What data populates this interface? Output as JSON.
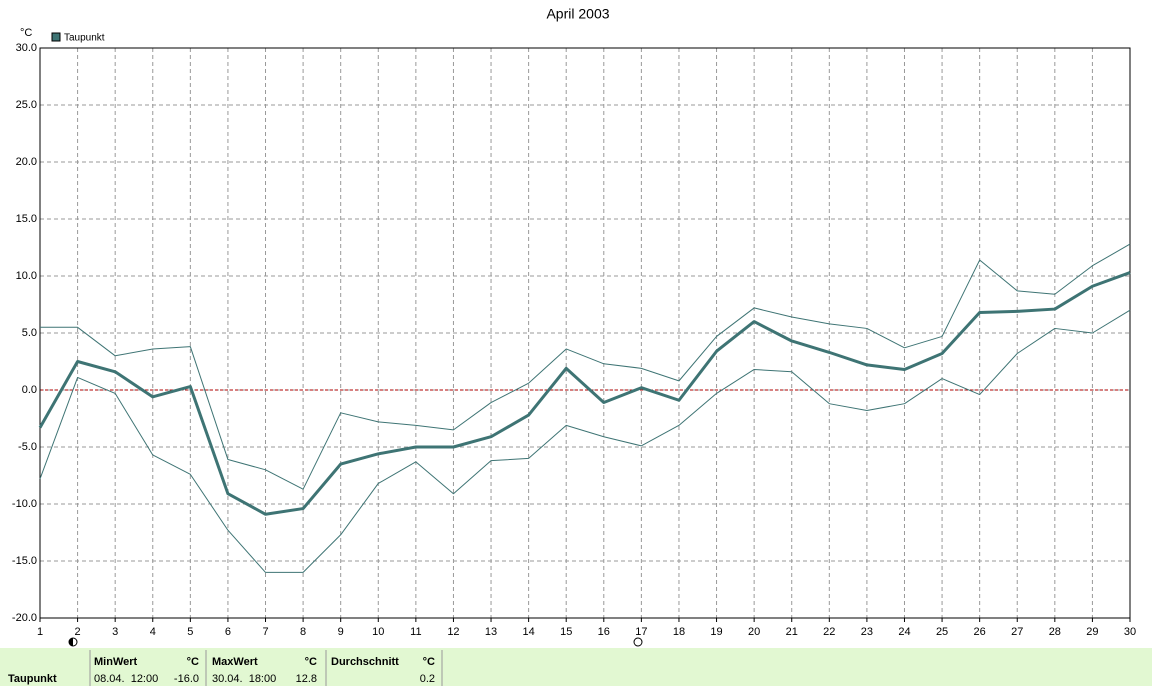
{
  "chart_data": {
    "type": "line",
    "title": "April 2003",
    "y_unit": "°C",
    "x": [
      1,
      2,
      3,
      4,
      5,
      6,
      7,
      8,
      9,
      10,
      11,
      12,
      13,
      14,
      15,
      16,
      17,
      18,
      19,
      20,
      21,
      22,
      23,
      24,
      25,
      26,
      27,
      28,
      29,
      30
    ],
    "xlim": [
      1,
      30
    ],
    "xticks": [
      1,
      2,
      3,
      4,
      5,
      6,
      7,
      8,
      9,
      10,
      11,
      12,
      13,
      14,
      15,
      16,
      17,
      18,
      19,
      20,
      21,
      22,
      23,
      24,
      25,
      26,
      27,
      28,
      29,
      30
    ],
    "ylim": [
      -20,
      30
    ],
    "yticks": [
      {
        "value": -20,
        "label": "-20.0"
      },
      {
        "value": -15,
        "label": "-15.0"
      },
      {
        "value": -10,
        "label": "-10.0"
      },
      {
        "value": -5,
        "label": "-5.0"
      },
      {
        "value": 0,
        "label": "0.0"
      },
      {
        "value": 5,
        "label": "5.0"
      },
      {
        "value": 10,
        "label": "10.0"
      },
      {
        "value": 15,
        "label": "15.0"
      },
      {
        "value": 20,
        "label": "20.0"
      },
      {
        "value": 25,
        "label": "25.0"
      },
      {
        "value": 30,
        "label": "30.0"
      }
    ],
    "grid": true,
    "zero_line_color": "#b00000",
    "legend": "top-left",
    "series": [
      {
        "name": "Taupunkt",
        "color": "#3e7474",
        "values": [
          -3.3,
          2.5,
          1.6,
          -0.6,
          0.3,
          -9.1,
          -10.9,
          -10.4,
          -6.5,
          -5.6,
          -5.0,
          -5.0,
          -4.1,
          -2.2,
          1.9,
          -1.1,
          0.2,
          -0.9,
          3.4,
          6.0,
          4.3,
          3.3,
          2.2,
          1.8,
          3.2,
          6.8,
          6.9,
          7.1,
          9.1,
          10.3
        ],
        "max_values": [
          5.5,
          5.5,
          3.0,
          3.6,
          3.8,
          -6.1,
          -7.0,
          -8.7,
          -2.0,
          -2.8,
          -3.1,
          -3.5,
          -1.1,
          0.6,
          3.6,
          2.3,
          1.9,
          0.8,
          4.7,
          7.2,
          6.4,
          5.8,
          5.4,
          3.7,
          4.7,
          11.4,
          8.7,
          8.4,
          10.9,
          12.8
        ],
        "min_values": [
          -7.8,
          1.1,
          -0.3,
          -5.7,
          -7.4,
          -12.3,
          -16.0,
          -16.0,
          -12.7,
          -8.2,
          -6.3,
          -9.1,
          -6.2,
          -6.0,
          -3.1,
          -4.1,
          -4.9,
          -3.1,
          -0.3,
          1.8,
          1.6,
          -1.2,
          -1.8,
          -1.2,
          1.0,
          -0.4,
          3.2,
          5.4,
          5.0,
          7.0
        ]
      }
    ],
    "summary": {
      "row_label": "Taupunkt",
      "min": {
        "header": "MinWert",
        "unit": "°C",
        "when": "08.04.  12:00",
        "value": "-16.0"
      },
      "max": {
        "header": "MaxWert",
        "unit": "°C",
        "when": "30.04.  18:00",
        "value": "12.8"
      },
      "mean": {
        "header": "Durchschnitt",
        "unit": "°C",
        "value": "0.2"
      }
    }
  }
}
